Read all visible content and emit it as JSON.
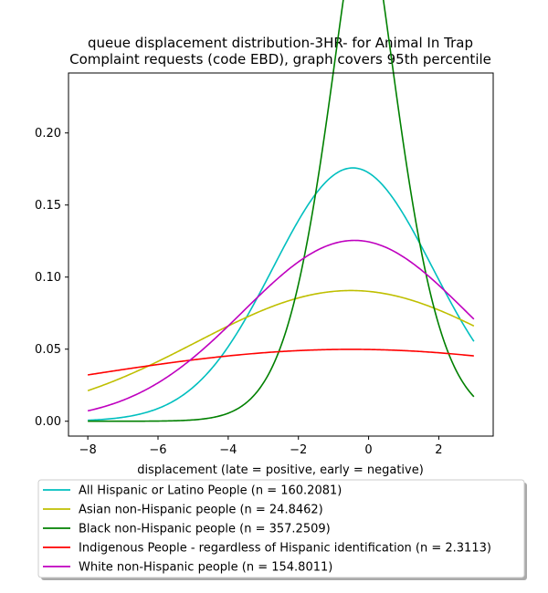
{
  "chart_data": {
    "type": "line",
    "title": "queue displacement distribution-3HR-  for Animal In Trap Complaint  requests (code EBD), graph covers 95th percentile",
    "title_lines": [
      "queue displacement distribution-3HR-  for Animal In Trap",
      "Complaint  requests (code EBD), graph covers 95th percentile"
    ],
    "xlabel": "displacement (late = positive, early = negative)",
    "ylabel": "",
    "xlim": [
      -8.55,
      3.55
    ],
    "ylim": [
      -0.0103,
      0.2416
    ],
    "x_range": [
      -8,
      3
    ],
    "x_ticks": [
      -8,
      -6,
      -4,
      -2,
      0,
      2
    ],
    "x_tick_labels": [
      "−8",
      "−6",
      "−4",
      "−2",
      "0",
      "2"
    ],
    "y_ticks": [
      0.0,
      0.05,
      0.1,
      0.15,
      0.2
    ],
    "y_tick_labels": [
      "0.00",
      "0.05",
      "0.10",
      "0.15",
      "0.20"
    ],
    "grid": false,
    "legend_placement": "below",
    "series": [
      {
        "name": "All Hispanic or Latino People (n = 160.2081)",
        "color": "#00bfbf",
        "mu": -0.45,
        "sigma": 2.27
      },
      {
        "name": "Asian non-Hispanic people (n = 24.8462)",
        "color": "#bfbf00",
        "mu": -0.5,
        "sigma": 4.4
      },
      {
        "name": "Black non-Hispanic people (n = 357.2509)",
        "color": "#008000",
        "mu": -0.15,
        "sigma": 1.28,
        "beta": 1.55
      },
      {
        "name": "Indigenous People - regardless of Hispanic identification (n = 2.3113)",
        "color": "#ff0000",
        "mu": -0.5,
        "sigma": 8.0
      },
      {
        "name": "White non-Hispanic people (n = 154.8011)",
        "color": "#bf00bf",
        "mu": -0.4,
        "sigma": 3.18
      }
    ]
  }
}
